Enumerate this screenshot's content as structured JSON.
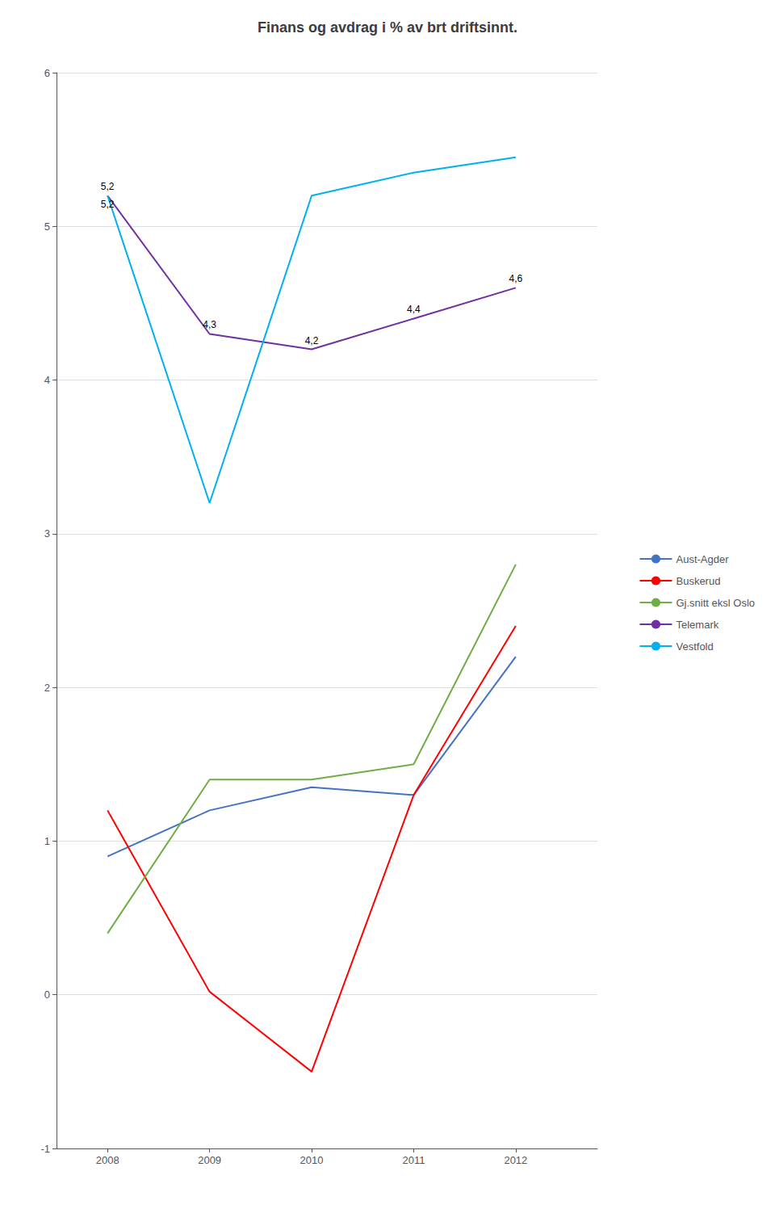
{
  "chart_data": {
    "type": "line",
    "title": "Finans og avdrag i % av brt driftsinnt.",
    "x": [
      2008,
      2009,
      2010,
      2011,
      2012
    ],
    "xlim": [
      2007.5,
      2012.8
    ],
    "xticks": [
      2008,
      2009,
      2010,
      2011,
      2012
    ],
    "ylim": [
      -1,
      6
    ],
    "yticks": [
      -1,
      0,
      1,
      2,
      3,
      4,
      5,
      6
    ],
    "grid": true,
    "legend": "right",
    "series": [
      {
        "name": "Aust-Agder",
        "color": "#4472C4",
        "values": [
          0.9,
          1.2,
          1.35,
          1.3,
          2.2
        ]
      },
      {
        "name": "Buskerud",
        "color": "#FF0000",
        "values": [
          1.2,
          0.02,
          -0.5,
          1.3,
          2.4
        ]
      },
      {
        "name": "Gj.snitt eksl Oslo",
        "color": "#70AD47",
        "values": [
          0.4,
          1.4,
          1.4,
          1.5,
          2.8
        ]
      },
      {
        "name": "Telemark",
        "color": "#7030A0",
        "values": [
          5.2,
          4.3,
          4.2,
          4.4,
          4.6
        ],
        "data_labels": true,
        "value_labels": [
          "5,2",
          "4,3",
          "4,2",
          "4,4",
          "4,6"
        ]
      },
      {
        "name": "Vestfold",
        "color": "#00B0F0",
        "values": [
          5.2,
          3.2,
          5.2,
          5.35,
          5.45
        ],
        "data_labels": true,
        "value_labels": [
          "5,2",
          null,
          null,
          null,
          null
        ]
      }
    ]
  }
}
